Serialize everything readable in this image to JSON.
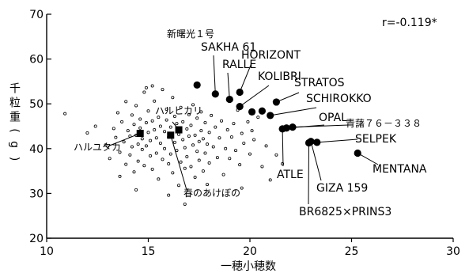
{
  "chart_data": {
    "type": "scatter",
    "title": "",
    "xlabel": "一穂小穂数",
    "ylabel": "千粒重(g)",
    "xlim": [
      10,
      30
    ],
    "ylim": [
      20,
      70
    ],
    "xticks": [
      10,
      15,
      20,
      25,
      30
    ],
    "yticks": [
      20,
      30,
      40,
      50,
      60,
      70
    ],
    "annotation": "r=-0.119*",
    "series": [
      {
        "role": "background",
        "marker": "small-open-circle",
        "points": [
          [
            10.9,
            47.8
          ],
          [
            12.0,
            43.5
          ],
          [
            12.4,
            45.0
          ],
          [
            12.9,
            40.8
          ],
          [
            13.1,
            37.8
          ],
          [
            13.3,
            44.5
          ],
          [
            13.4,
            42.5
          ],
          [
            13.5,
            48.0
          ],
          [
            13.6,
            39.2
          ],
          [
            13.7,
            46.0
          ],
          [
            13.8,
            41.5
          ],
          [
            13.9,
            50.5
          ],
          [
            13.9,
            36.5
          ],
          [
            14.0,
            44.0
          ],
          [
            14.1,
            42.8
          ],
          [
            14.1,
            38.6
          ],
          [
            14.2,
            47.5
          ],
          [
            14.2,
            40.4
          ],
          [
            14.3,
            45.4
          ],
          [
            14.3,
            34.8
          ],
          [
            14.4,
            43.0
          ],
          [
            14.4,
            49.6
          ],
          [
            14.5,
            41.0
          ],
          [
            14.5,
            37.2
          ],
          [
            14.6,
            46.6
          ],
          [
            14.6,
            44.6
          ],
          [
            14.7,
            39.8
          ],
          [
            14.7,
            42.2
          ],
          [
            14.8,
            52.6
          ],
          [
            14.8,
            36.2
          ],
          [
            14.9,
            45.8
          ],
          [
            14.9,
            40.6
          ],
          [
            15.0,
            43.6
          ],
          [
            15.0,
            48.4
          ],
          [
            15.1,
            38.4
          ],
          [
            15.1,
            41.8
          ],
          [
            15.2,
            46.2
          ],
          [
            15.2,
            35.4
          ],
          [
            15.3,
            44.2
          ],
          [
            15.3,
            50.6
          ],
          [
            15.4,
            42.4
          ],
          [
            15.4,
            39.0
          ],
          [
            15.5,
            47.0
          ],
          [
            15.5,
            33.2
          ],
          [
            15.6,
            45.0
          ],
          [
            15.6,
            41.2
          ],
          [
            15.7,
            37.6
          ],
          [
            15.7,
            53.2
          ],
          [
            15.8,
            43.8
          ],
          [
            15.8,
            40.0
          ],
          [
            15.9,
            48.8
          ],
          [
            15.9,
            46.4
          ],
          [
            16.0,
            36.6
          ],
          [
            16.0,
            42.6
          ],
          [
            16.1,
            44.8
          ],
          [
            16.1,
            38.8
          ],
          [
            16.2,
            51.4
          ],
          [
            16.2,
            34.6
          ],
          [
            16.3,
            41.4
          ],
          [
            16.3,
            47.2
          ],
          [
            16.4,
            39.6
          ],
          [
            16.4,
            45.6
          ],
          [
            16.5,
            43.2
          ],
          [
            16.5,
            31.8
          ],
          [
            16.6,
            49.2
          ],
          [
            16.6,
            37.0
          ],
          [
            16.7,
            42.0
          ],
          [
            16.7,
            46.0
          ],
          [
            16.8,
            40.2
          ],
          [
            16.8,
            35.6
          ],
          [
            16.9,
            44.4
          ],
          [
            16.9,
            38.2
          ],
          [
            17.0,
            47.6
          ],
          [
            17.0,
            42.8
          ],
          [
            17.1,
            36.0
          ],
          [
            17.1,
            45.2
          ],
          [
            17.2,
            40.8
          ],
          [
            17.2,
            49.8
          ],
          [
            17.3,
            43.0
          ],
          [
            17.3,
            33.6
          ],
          [
            17.4,
            46.8
          ],
          [
            17.4,
            39.4
          ],
          [
            17.5,
            41.6
          ],
          [
            17.5,
            37.4
          ],
          [
            17.6,
            44.0
          ],
          [
            17.6,
            48.2
          ],
          [
            17.7,
            35.0
          ],
          [
            17.7,
            42.2
          ],
          [
            17.8,
            45.8
          ],
          [
            17.8,
            39.0
          ],
          [
            17.9,
            41.0
          ],
          [
            18.0,
            43.6
          ],
          [
            18.0,
            36.8
          ],
          [
            18.1,
            47.4
          ],
          [
            18.2,
            40.4
          ],
          [
            18.3,
            44.8
          ],
          [
            18.4,
            38.0
          ],
          [
            18.5,
            42.4
          ],
          [
            18.6,
            46.2
          ],
          [
            18.7,
            34.2
          ],
          [
            18.8,
            40.0
          ],
          [
            18.9,
            44.2
          ],
          [
            19.0,
            37.8
          ],
          [
            19.1,
            42.6
          ],
          [
            19.2,
            45.6
          ],
          [
            19.3,
            39.6
          ],
          [
            19.4,
            48.6
          ],
          [
            19.5,
            36.4
          ],
          [
            19.6,
            43.4
          ],
          [
            19.7,
            41.2
          ],
          [
            19.9,
            46.0
          ],
          [
            20.0,
            38.8
          ],
          [
            20.1,
            44.0
          ],
          [
            20.2,
            42.0
          ],
          [
            20.4,
            47.0
          ],
          [
            20.6,
            36.0
          ],
          [
            20.8,
            40.6
          ],
          [
            21.0,
            33.0
          ],
          [
            21.3,
            38.6
          ],
          [
            21.6,
            36.6
          ],
          [
            15.2,
            54.0
          ],
          [
            14.9,
            53.6
          ],
          [
            16.8,
            27.6
          ],
          [
            16.0,
            29.6
          ],
          [
            14.4,
            30.8
          ],
          [
            13.6,
            33.8
          ],
          [
            17.9,
            32.0
          ],
          [
            19.6,
            31.2
          ]
        ]
      },
      {
        "role": "japanese-varieties",
        "marker": "filled-square",
        "points": [
          {
            "label": "ハルユタカ",
            "x": 14.6,
            "y": 43.4
          },
          {
            "label": "ハルヒカリ",
            "x": 16.5,
            "y": 44.2
          },
          {
            "label": "春のあけぼの",
            "x": 16.1,
            "y": 43.0
          }
        ]
      },
      {
        "role": "foreign-varieties",
        "marker": "filled-circle",
        "points": [
          {
            "label": "新曙光１号",
            "x": 17.4,
            "y": 54.2
          },
          {
            "label": "SAKHA 61",
            "x": 18.3,
            "y": 52.2
          },
          {
            "label": "RALLE",
            "x": 19.0,
            "y": 51.0
          },
          {
            "label": "HORIZONT",
            "x": 19.5,
            "y": 52.6
          },
          {
            "label": "KOLIBRI",
            "x": 19.5,
            "y": 49.4
          },
          {
            "label": "",
            "x": 20.1,
            "y": 48.2
          },
          {
            "label": "",
            "x": 20.6,
            "y": 48.4
          },
          {
            "label": "STRATOS",
            "x": 21.3,
            "y": 50.4
          },
          {
            "label": "SCHIROKKO",
            "x": 21.0,
            "y": 47.4
          },
          {
            "label": "OPAL",
            "x": 21.8,
            "y": 44.6
          },
          {
            "label": "ATLE",
            "x": 21.6,
            "y": 44.4
          },
          {
            "label": "青藷７６－３３８",
            "x": 22.1,
            "y": 44.8
          },
          {
            "label": "SELPEK",
            "x": 23.3,
            "y": 41.4
          },
          {
            "label": "GIZA 159",
            "x": 23.0,
            "y": 41.6
          },
          {
            "label": "BR6825×PRINS3",
            "x": 22.9,
            "y": 41.3
          },
          {
            "label": "MENTANA",
            "x": 25.3,
            "y": 39.0
          }
        ]
      }
    ]
  }
}
